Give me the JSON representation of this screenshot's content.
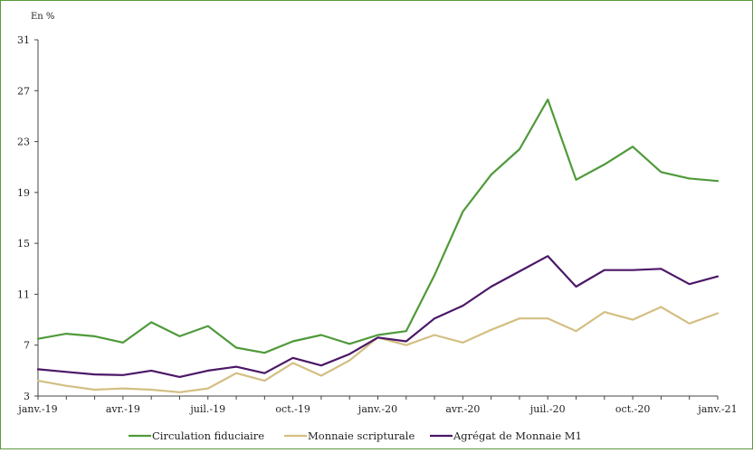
{
  "chart_data": {
    "type": "line",
    "unit_label": "En %",
    "ylim": [
      3,
      31
    ],
    "yticks": [
      3,
      7,
      11,
      15,
      19,
      23,
      27,
      31
    ],
    "x_tick_labels": [
      "janv.-19",
      "avr.-19",
      "juil.-19",
      "oct.-19",
      "janv.-20",
      "avr.-20",
      "juil.-20",
      "oct.-20",
      "janv.-21"
    ],
    "x": [
      "2019-01",
      "2019-02",
      "2019-03",
      "2019-04",
      "2019-05",
      "2019-06",
      "2019-07",
      "2019-08",
      "2019-09",
      "2019-10",
      "2019-11",
      "2019-12",
      "2020-01",
      "2020-02",
      "2020-03",
      "2020-04",
      "2020-05",
      "2020-06",
      "2020-07",
      "2020-08",
      "2020-09",
      "2020-10",
      "2020-11",
      "2020-12",
      "2021-01"
    ],
    "grid": false,
    "legend_position": "bottom",
    "series": [
      {
        "name": "Circulation fiduciaire",
        "color": "#4f9a3a",
        "values": [
          7.5,
          7.9,
          7.7,
          7.2,
          8.8,
          7.7,
          8.5,
          6.8,
          6.4,
          7.3,
          7.8,
          7.1,
          7.8,
          8.1,
          12.5,
          17.5,
          20.4,
          22.4,
          26.3,
          20.0,
          21.2,
          22.6,
          20.6,
          20.1,
          19.9
        ]
      },
      {
        "name": "Monnaie scripturale",
        "color": "#d3bf83",
        "values": [
          4.2,
          3.8,
          3.5,
          3.6,
          3.5,
          3.3,
          3.6,
          4.8,
          4.2,
          5.6,
          4.6,
          5.8,
          7.6,
          7.0,
          7.8,
          7.2,
          8.2,
          9.1,
          9.1,
          8.1,
          9.6,
          9.0,
          10.0,
          8.7,
          9.5
        ]
      },
      {
        "name": "Agrégat de Monnaie M1",
        "color": "#4b1767",
        "values": [
          5.1,
          4.9,
          4.7,
          4.65,
          5.0,
          4.5,
          5.0,
          5.3,
          4.8,
          6.0,
          5.4,
          6.3,
          7.6,
          7.3,
          9.1,
          10.1,
          11.6,
          12.8,
          14.0,
          11.6,
          12.9,
          12.9,
          13.0,
          11.8,
          12.4
        ]
      }
    ]
  }
}
